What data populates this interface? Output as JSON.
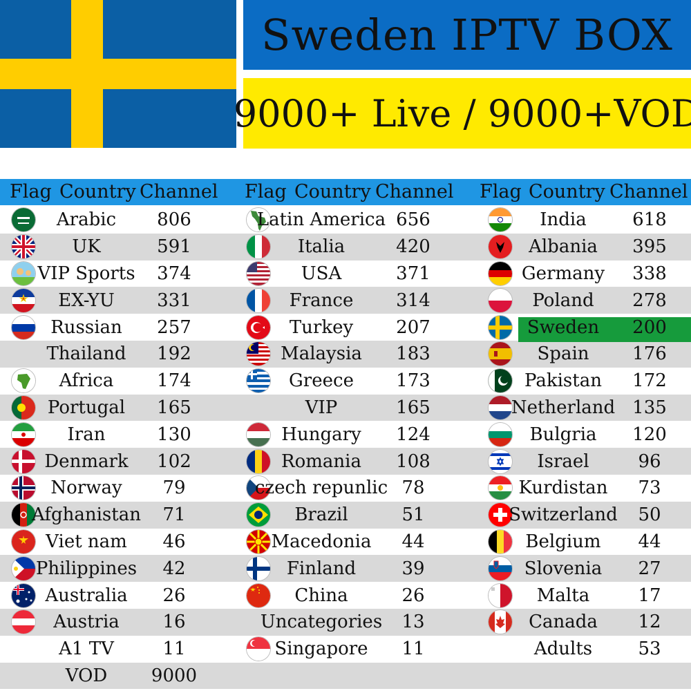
{
  "banner": {
    "title": "Sweden IPTV BOX",
    "subtitle": "9000+ Live / 9000+VOD",
    "colors": {
      "flag_blue": "#0b5fa5",
      "flag_yellow": "#ffcd00",
      "title_bg": "#0b6cc4",
      "subtitle_bg": "#ffea00",
      "header_bg": "#1f96e3",
      "highlight": "#169b3c"
    }
  },
  "table": {
    "headers": [
      "Flag",
      "Country",
      "Channel"
    ],
    "columns": [
      {
        "rows": [
          {
            "country": "Arabic",
            "channel": "806",
            "flag": "saudi-flag-icon"
          },
          {
            "country": "UK",
            "channel": "591",
            "flag": "uk-flag-icon"
          },
          {
            "country": "VIP Sports",
            "channel": "374",
            "flag": "sports-icon"
          },
          {
            "country": "EX-YU",
            "channel": "331",
            "flag": "yugoslavia-flag-icon"
          },
          {
            "country": "Russian",
            "channel": "257",
            "flag": "russia-flag-icon"
          },
          {
            "country": "Thailand",
            "channel": "192",
            "flag": ""
          },
          {
            "country": "Africa",
            "channel": "174",
            "flag": "africa-map-icon"
          },
          {
            "country": "Portugal",
            "channel": "165",
            "flag": "portugal-flag-icon"
          },
          {
            "country": "Iran",
            "channel": "130",
            "flag": "iran-flag-icon"
          },
          {
            "country": "Denmark",
            "channel": "102",
            "flag": "denmark-flag-icon"
          },
          {
            "country": "Norway",
            "channel": "79",
            "flag": "norway-flag-icon"
          },
          {
            "country": "Afghanistan",
            "channel": "71",
            "flag": "afghanistan-flag-icon"
          },
          {
            "country": "Viet nam",
            "channel": "46",
            "flag": "vietnam-flag-icon"
          },
          {
            "country": "Philippines",
            "channel": "42",
            "flag": "philippines-flag-icon"
          },
          {
            "country": "Australia",
            "channel": "26",
            "flag": "australia-flag-icon"
          },
          {
            "country": "Austria",
            "channel": "16",
            "flag": "austria-flag-icon"
          },
          {
            "country": "A1 TV",
            "channel": "11",
            "flag": ""
          },
          {
            "country": "VOD",
            "channel": "9000",
            "flag": ""
          }
        ]
      },
      {
        "rows": [
          {
            "country": "Latin America",
            "channel": "656",
            "flag": "latin-america-map-icon"
          },
          {
            "country": "Italia",
            "channel": "420",
            "flag": "italy-flag-icon"
          },
          {
            "country": "USA",
            "channel": "371",
            "flag": "usa-flag-icon"
          },
          {
            "country": "France",
            "channel": "314",
            "flag": "france-flag-icon"
          },
          {
            "country": "Turkey",
            "channel": "207",
            "flag": "turkey-flag-icon"
          },
          {
            "country": "Malaysia",
            "channel": "183",
            "flag": "malaysia-flag-icon"
          },
          {
            "country": "Greece",
            "channel": "173",
            "flag": "greece-flag-icon"
          },
          {
            "country": "VIP",
            "channel": "165",
            "flag": ""
          },
          {
            "country": "Hungary",
            "channel": "124",
            "flag": "hungary-flag-icon"
          },
          {
            "country": "Romania",
            "channel": "108",
            "flag": "romania-flag-icon"
          },
          {
            "country": "czech repunlic",
            "channel": "78",
            "flag": "czech-flag-icon"
          },
          {
            "country": "Brazil",
            "channel": "51",
            "flag": "brazil-flag-icon"
          },
          {
            "country": "Macedonia",
            "channel": "44",
            "flag": "macedonia-flag-icon"
          },
          {
            "country": "Finland",
            "channel": "39",
            "flag": "finland-flag-icon"
          },
          {
            "country": "China",
            "channel": "26",
            "flag": "china-flag-icon"
          },
          {
            "country": "Uncategories",
            "channel": "13",
            "flag": ""
          },
          {
            "country": "Singapore",
            "channel": "11",
            "flag": "singapore-flag-icon"
          }
        ]
      },
      {
        "rows": [
          {
            "country": "India",
            "channel": "618",
            "flag": "india-flag-icon"
          },
          {
            "country": "Albania",
            "channel": "395",
            "flag": "albania-flag-icon"
          },
          {
            "country": "Germany",
            "channel": "338",
            "flag": "germany-flag-icon"
          },
          {
            "country": "Poland",
            "channel": "278",
            "flag": "poland-flag-icon"
          },
          {
            "country": "Sweden",
            "channel": "200",
            "flag": "sweden-flag-icon",
            "highlight": true
          },
          {
            "country": "Spain",
            "channel": "176",
            "flag": "spain-flag-icon"
          },
          {
            "country": "Pakistan",
            "channel": "172",
            "flag": "pakistan-flag-icon"
          },
          {
            "country": "Netherland",
            "channel": "135",
            "flag": "netherlands-flag-icon"
          },
          {
            "country": "Bulgria",
            "channel": "120",
            "flag": "bulgaria-flag-icon"
          },
          {
            "country": "Israel",
            "channel": "96",
            "flag": "israel-flag-icon"
          },
          {
            "country": "Kurdistan",
            "channel": "73",
            "flag": "kurdistan-flag-icon"
          },
          {
            "country": "Switzerland",
            "channel": "50",
            "flag": "switzerland-flag-icon"
          },
          {
            "country": "Belgium",
            "channel": "44",
            "flag": "belgium-flag-icon"
          },
          {
            "country": "Slovenia",
            "channel": "27",
            "flag": "slovenia-flag-icon"
          },
          {
            "country": "Malta",
            "channel": "17",
            "flag": "malta-flag-icon"
          },
          {
            "country": "Canada",
            "channel": "12",
            "flag": "canada-flag-icon"
          },
          {
            "country": "Adults",
            "channel": "53",
            "flag": ""
          }
        ]
      }
    ]
  }
}
